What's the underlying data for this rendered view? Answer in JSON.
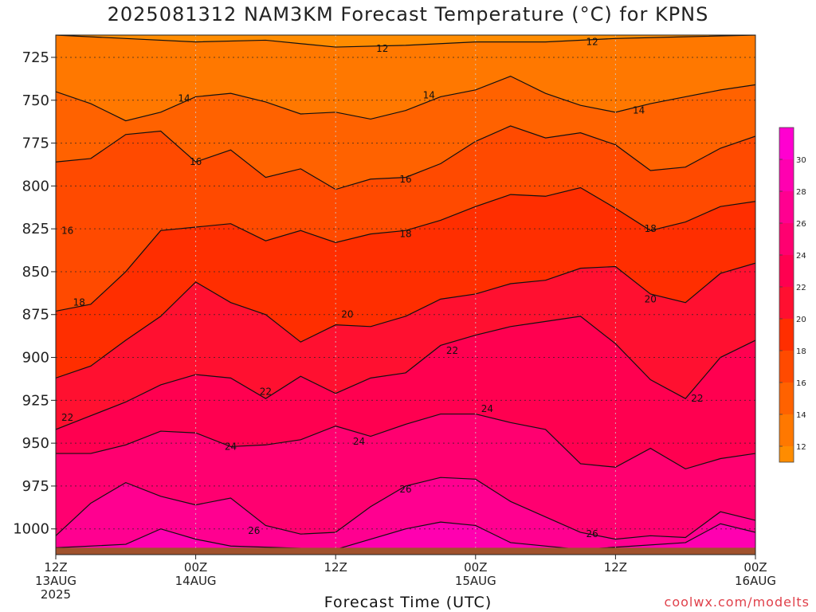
{
  "chart_data": {
    "type": "heatmap",
    "title": "2025081312 NAM3KM Forecast Temperature (°C) for KPNS",
    "xlabel": "Forecast Time (UTC)",
    "ylabel": "",
    "credit": "coolwx.com/modelts",
    "x_ticks": [
      {
        "hours": 0,
        "line1": "12Z",
        "line2": "13AUG",
        "line3": "2025"
      },
      {
        "hours": 12,
        "line1": "00Z",
        "line2": "14AUG",
        "line3": ""
      },
      {
        "hours": 24,
        "line1": "12Z",
        "line2": "",
        "line3": ""
      },
      {
        "hours": 36,
        "line1": "00Z",
        "line2": "15AUG",
        "line3": ""
      },
      {
        "hours": 48,
        "line1": "12Z",
        "line2": "",
        "line3": ""
      },
      {
        "hours": 60,
        "line1": "00Z",
        "line2": "16AUG",
        "line3": ""
      }
    ],
    "xlim": [
      0,
      60
    ],
    "y_ticks": [
      725,
      750,
      775,
      800,
      825,
      850,
      875,
      900,
      925,
      950,
      975,
      1000
    ],
    "ylim": [
      712,
      1015
    ],
    "grid": true,
    "colorbar": {
      "ticks": [
        12,
        14,
        16,
        18,
        20,
        22,
        24,
        26,
        28,
        30
      ],
      "levels": [
        11,
        12,
        14,
        16,
        18,
        20,
        22,
        24,
        26,
        28,
        30,
        32
      ],
      "colors": [
        "#ff8c00",
        "#ff7800",
        "#ff6200",
        "#ff4a00",
        "#ff2e00",
        "#ff1030",
        "#ff0050",
        "#ff0070",
        "#ff0090",
        "#ff00b0",
        "#ff00d0",
        "#ff00ff"
      ]
    },
    "ground_color": "#a0522d",
    "ground_level_hpa": 1011,
    "isotherms": [
      {
        "temp": 12,
        "label_positions": [
          [
            28,
            720
          ],
          [
            46,
            716
          ]
        ],
        "points": [
          [
            0,
            712
          ],
          [
            6,
            714
          ],
          [
            12,
            716
          ],
          [
            18,
            715
          ],
          [
            24,
            719
          ],
          [
            30,
            718
          ],
          [
            36,
            716
          ],
          [
            42,
            716
          ],
          [
            48,
            714
          ],
          [
            54,
            713
          ],
          [
            60,
            712
          ]
        ]
      },
      {
        "temp": 14,
        "label_positions": [
          [
            11,
            749
          ],
          [
            32,
            747
          ],
          [
            50,
            756
          ]
        ],
        "points": [
          [
            0,
            745
          ],
          [
            3,
            752
          ],
          [
            6,
            762
          ],
          [
            9,
            757
          ],
          [
            12,
            748
          ],
          [
            15,
            746
          ],
          [
            18,
            751
          ],
          [
            21,
            758
          ],
          [
            24,
            757
          ],
          [
            27,
            761
          ],
          [
            30,
            756
          ],
          [
            33,
            748
          ],
          [
            36,
            744
          ],
          [
            39,
            736
          ],
          [
            42,
            746
          ],
          [
            45,
            753
          ],
          [
            48,
            757
          ],
          [
            51,
            752
          ],
          [
            54,
            748
          ],
          [
            57,
            744
          ],
          [
            60,
            741
          ]
        ]
      },
      {
        "temp": 16,
        "label_positions": [
          [
            12,
            786
          ],
          [
            30,
            796
          ],
          [
            1,
            826
          ]
        ],
        "points": [
          [
            0,
            786
          ],
          [
            3,
            784
          ],
          [
            6,
            770
          ],
          [
            9,
            768
          ],
          [
            12,
            786
          ],
          [
            15,
            779
          ],
          [
            18,
            795
          ],
          [
            21,
            790
          ],
          [
            24,
            802
          ],
          [
            27,
            796
          ],
          [
            30,
            795
          ],
          [
            33,
            787
          ],
          [
            36,
            774
          ],
          [
            39,
            765
          ],
          [
            42,
            772
          ],
          [
            45,
            769
          ],
          [
            48,
            776
          ],
          [
            51,
            791
          ],
          [
            54,
            789
          ],
          [
            57,
            778
          ],
          [
            60,
            771
          ]
        ]
      },
      {
        "temp": 18,
        "label_positions": [
          [
            30,
            828
          ],
          [
            51,
            825
          ],
          [
            2,
            868
          ]
        ],
        "points": [
          [
            0,
            873
          ],
          [
            3,
            869
          ],
          [
            6,
            850
          ],
          [
            9,
            826
          ],
          [
            12,
            824
          ],
          [
            15,
            822
          ],
          [
            18,
            832
          ],
          [
            21,
            826
          ],
          [
            24,
            833
          ],
          [
            27,
            828
          ],
          [
            30,
            826
          ],
          [
            33,
            820
          ],
          [
            36,
            812
          ],
          [
            39,
            805
          ],
          [
            42,
            806
          ],
          [
            45,
            801
          ],
          [
            48,
            813
          ],
          [
            51,
            826
          ],
          [
            54,
            821
          ],
          [
            57,
            812
          ],
          [
            60,
            809
          ]
        ]
      },
      {
        "temp": 20,
        "label_positions": [
          [
            25,
            875
          ],
          [
            51,
            866
          ]
        ],
        "points": [
          [
            0,
            912
          ],
          [
            3,
            905
          ],
          [
            6,
            890
          ],
          [
            9,
            876
          ],
          [
            12,
            856
          ],
          [
            15,
            868
          ],
          [
            18,
            875
          ],
          [
            21,
            891
          ],
          [
            24,
            881
          ],
          [
            27,
            882
          ],
          [
            30,
            876
          ],
          [
            33,
            866
          ],
          [
            36,
            863
          ],
          [
            39,
            857
          ],
          [
            42,
            855
          ],
          [
            45,
            848
          ],
          [
            48,
            847
          ],
          [
            51,
            863
          ],
          [
            54,
            868
          ],
          [
            57,
            851
          ],
          [
            60,
            845
          ]
        ]
      },
      {
        "temp": 22,
        "label_positions": [
          [
            18,
            920
          ],
          [
            34,
            896
          ],
          [
            55,
            924
          ],
          [
            1,
            935
          ]
        ],
        "points": [
          [
            0,
            942
          ],
          [
            3,
            934
          ],
          [
            6,
            926
          ],
          [
            9,
            916
          ],
          [
            12,
            910
          ],
          [
            15,
            912
          ],
          [
            18,
            924
          ],
          [
            21,
            911
          ],
          [
            24,
            921
          ],
          [
            27,
            912
          ],
          [
            30,
            909
          ],
          [
            33,
            893
          ],
          [
            36,
            887
          ],
          [
            39,
            882
          ],
          [
            42,
            879
          ],
          [
            45,
            876
          ],
          [
            48,
            892
          ],
          [
            51,
            913
          ],
          [
            54,
            924
          ],
          [
            57,
            900
          ],
          [
            60,
            890
          ]
        ]
      },
      {
        "temp": 24,
        "label_positions": [
          [
            15,
            952
          ],
          [
            26,
            949
          ],
          [
            37,
            930
          ]
        ],
        "points": [
          [
            0,
            956
          ],
          [
            3,
            956
          ],
          [
            6,
            951
          ],
          [
            9,
            943
          ],
          [
            12,
            944
          ],
          [
            15,
            952
          ],
          [
            18,
            951
          ],
          [
            21,
            948
          ],
          [
            24,
            940
          ],
          [
            27,
            946
          ],
          [
            30,
            939
          ],
          [
            33,
            933
          ],
          [
            36,
            933
          ],
          [
            39,
            938
          ],
          [
            42,
            942
          ],
          [
            45,
            962
          ],
          [
            48,
            964
          ],
          [
            51,
            953
          ],
          [
            54,
            965
          ],
          [
            57,
            959
          ],
          [
            60,
            956
          ]
        ]
      },
      {
        "temp": 26,
        "label_positions": [
          [
            17,
            1001
          ],
          [
            30,
            977
          ],
          [
            46,
            1003
          ]
        ],
        "points": [
          [
            0,
            1004
          ],
          [
            3,
            985
          ],
          [
            6,
            973
          ],
          [
            9,
            981
          ],
          [
            12,
            986
          ],
          [
            15,
            982
          ],
          [
            18,
            998
          ],
          [
            21,
            1003
          ],
          [
            24,
            1002
          ],
          [
            27,
            987
          ],
          [
            30,
            975
          ],
          [
            33,
            970
          ],
          [
            36,
            971
          ],
          [
            39,
            984
          ],
          [
            42,
            993
          ],
          [
            45,
            1002
          ],
          [
            48,
            1006
          ],
          [
            51,
            1004
          ],
          [
            54,
            1005
          ],
          [
            57,
            990
          ],
          [
            60,
            995
          ]
        ]
      }
    ]
  }
}
